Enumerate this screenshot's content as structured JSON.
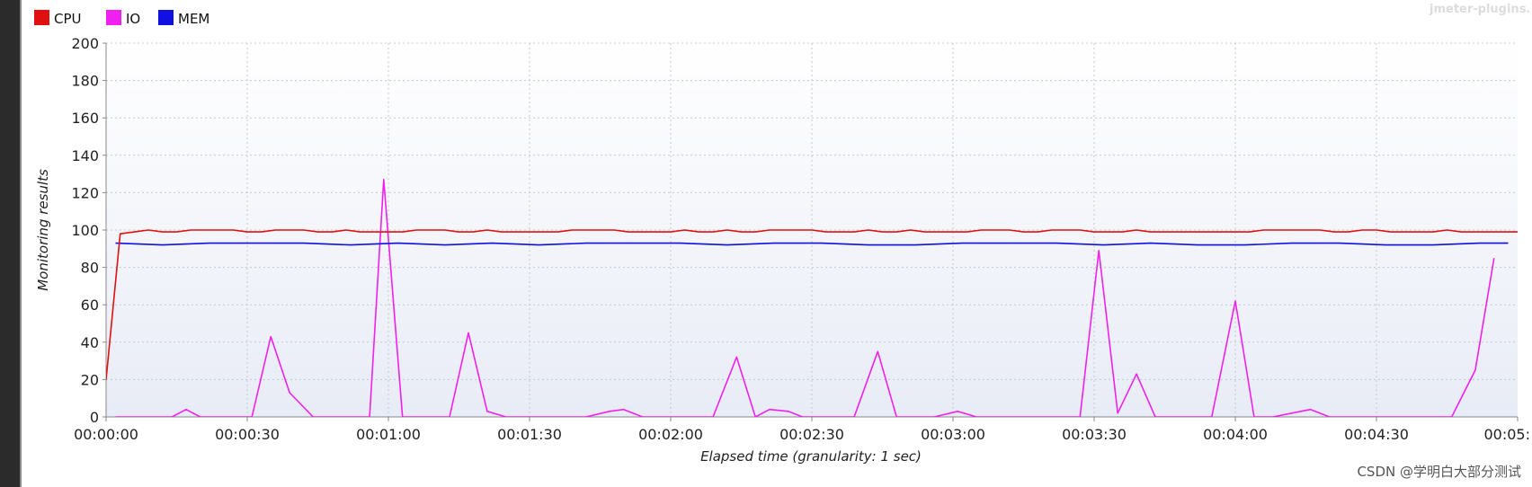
{
  "watermark": "jmeter-plugins.",
  "footer_watermark": "CSDN @学明白大部分测试",
  "colors": {
    "plot_bg_top": "#ffffff",
    "plot_bg_bottom": "#e8ecf6",
    "grid": "#c8c8c8",
    "cpu": "#e01010",
    "io": "#f020f0",
    "mem": "#1010e0"
  },
  "chart_data": {
    "type": "line",
    "title": "",
    "xlabel": "Elapsed time (granularity: 1 sec)",
    "ylabel": "Monitoring results",
    "ylim": [
      0,
      200
    ],
    "xlim": [
      0,
      300
    ],
    "y_ticks": [
      "0",
      "20",
      "40",
      "60",
      "80",
      "100",
      "120",
      "140",
      "160",
      "180",
      "200"
    ],
    "x_ticks": [
      "00:00:00",
      "00:00:30",
      "00:01:00",
      "00:01:30",
      "00:02:00",
      "00:02:30",
      "00:03:00",
      "00:03:30",
      "00:04:00",
      "00:04:30",
      "00:05:"
    ],
    "x_tick_seconds": [
      0,
      30,
      60,
      90,
      120,
      150,
      180,
      210,
      240,
      270,
      300
    ],
    "grid": true,
    "legend_position": "top-left",
    "series": [
      {
        "name": "CPU",
        "color": "#e01010",
        "points": [
          [
            0,
            20
          ],
          [
            3,
            98
          ],
          [
            6,
            99
          ],
          [
            9,
            100
          ],
          [
            12,
            99
          ],
          [
            15,
            99
          ],
          [
            18,
            100
          ],
          [
            21,
            100
          ],
          [
            24,
            100
          ],
          [
            27,
            100
          ],
          [
            30,
            99
          ],
          [
            33,
            99
          ],
          [
            36,
            100
          ],
          [
            39,
            100
          ],
          [
            42,
            100
          ],
          [
            45,
            99
          ],
          [
            48,
            99
          ],
          [
            51,
            100
          ],
          [
            54,
            99
          ],
          [
            57,
            99
          ],
          [
            60,
            99
          ],
          [
            63,
            99
          ],
          [
            66,
            100
          ],
          [
            69,
            100
          ],
          [
            72,
            100
          ],
          [
            75,
            99
          ],
          [
            78,
            99
          ],
          [
            81,
            100
          ],
          [
            84,
            99
          ],
          [
            87,
            99
          ],
          [
            90,
            99
          ],
          [
            93,
            99
          ],
          [
            96,
            99
          ],
          [
            99,
            100
          ],
          [
            102,
            100
          ],
          [
            105,
            100
          ],
          [
            108,
            100
          ],
          [
            111,
            99
          ],
          [
            114,
            99
          ],
          [
            117,
            99
          ],
          [
            120,
            99
          ],
          [
            123,
            100
          ],
          [
            126,
            99
          ],
          [
            129,
            99
          ],
          [
            132,
            100
          ],
          [
            135,
            99
          ],
          [
            138,
            99
          ],
          [
            141,
            100
          ],
          [
            144,
            100
          ],
          [
            147,
            100
          ],
          [
            150,
            100
          ],
          [
            153,
            99
          ],
          [
            156,
            99
          ],
          [
            159,
            99
          ],
          [
            162,
            100
          ],
          [
            165,
            99
          ],
          [
            168,
            99
          ],
          [
            171,
            100
          ],
          [
            174,
            99
          ],
          [
            177,
            99
          ],
          [
            180,
            99
          ],
          [
            183,
            99
          ],
          [
            186,
            100
          ],
          [
            189,
            100
          ],
          [
            192,
            100
          ],
          [
            195,
            99
          ],
          [
            198,
            99
          ],
          [
            201,
            100
          ],
          [
            204,
            100
          ],
          [
            207,
            100
          ],
          [
            210,
            99
          ],
          [
            213,
            99
          ],
          [
            216,
            99
          ],
          [
            219,
            100
          ],
          [
            222,
            99
          ],
          [
            225,
            99
          ],
          [
            228,
            99
          ],
          [
            231,
            99
          ],
          [
            234,
            99
          ],
          [
            237,
            99
          ],
          [
            240,
            99
          ],
          [
            243,
            99
          ],
          [
            246,
            100
          ],
          [
            249,
            100
          ],
          [
            252,
            100
          ],
          [
            255,
            100
          ],
          [
            258,
            100
          ],
          [
            261,
            99
          ],
          [
            264,
            99
          ],
          [
            267,
            100
          ],
          [
            270,
            100
          ],
          [
            273,
            99
          ],
          [
            276,
            99
          ],
          [
            279,
            99
          ],
          [
            282,
            99
          ],
          [
            285,
            100
          ],
          [
            288,
            99
          ],
          [
            291,
            99
          ],
          [
            294,
            99
          ],
          [
            297,
            99
          ],
          [
            300,
            99
          ]
        ]
      },
      {
        "name": "IO",
        "color": "#f020f0",
        "points": [
          [
            2,
            0
          ],
          [
            6,
            0
          ],
          [
            10,
            0
          ],
          [
            14,
            0
          ],
          [
            17,
            4
          ],
          [
            20,
            0
          ],
          [
            24,
            0
          ],
          [
            28,
            0
          ],
          [
            31,
            0
          ],
          [
            35,
            43
          ],
          [
            39,
            13
          ],
          [
            44,
            0
          ],
          [
            48,
            0
          ],
          [
            56,
            0
          ],
          [
            59,
            127
          ],
          [
            63,
            0
          ],
          [
            67,
            0
          ],
          [
            73,
            0
          ],
          [
            77,
            45
          ],
          [
            81,
            3
          ],
          [
            85,
            0
          ],
          [
            89,
            0
          ],
          [
            94,
            0
          ],
          [
            98,
            0
          ],
          [
            102,
            0
          ],
          [
            107,
            3
          ],
          [
            110,
            4
          ],
          [
            114,
            0
          ],
          [
            117,
            0
          ],
          [
            122,
            0
          ],
          [
            129,
            0
          ],
          [
            134,
            32
          ],
          [
            138,
            0
          ],
          [
            141,
            4
          ],
          [
            145,
            3
          ],
          [
            148,
            0
          ],
          [
            152,
            0
          ],
          [
            159,
            0
          ],
          [
            164,
            35
          ],
          [
            168,
            0
          ],
          [
            172,
            0
          ],
          [
            176,
            0
          ],
          [
            181,
            3
          ],
          [
            185,
            0
          ],
          [
            189,
            0
          ],
          [
            194,
            0
          ],
          [
            199,
            0
          ],
          [
            203,
            0
          ],
          [
            207,
            0
          ],
          [
            211,
            89
          ],
          [
            215,
            2
          ],
          [
            219,
            23
          ],
          [
            223,
            0
          ],
          [
            227,
            0
          ],
          [
            231,
            0
          ],
          [
            235,
            0
          ],
          [
            240,
            62
          ],
          [
            244,
            0
          ],
          [
            248,
            0
          ],
          [
            252,
            2
          ],
          [
            256,
            4
          ],
          [
            260,
            0
          ],
          [
            264,
            0
          ],
          [
            269,
            0
          ],
          [
            274,
            0
          ],
          [
            278,
            0
          ],
          [
            282,
            0
          ],
          [
            286,
            0
          ],
          [
            291,
            25
          ],
          [
            295,
            85
          ]
        ]
      },
      {
        "name": "MEM",
        "color": "#1010e0",
        "points": [
          [
            2,
            93
          ],
          [
            12,
            92
          ],
          [
            22,
            93
          ],
          [
            32,
            93
          ],
          [
            42,
            93
          ],
          [
            52,
            92
          ],
          [
            62,
            93
          ],
          [
            72,
            92
          ],
          [
            82,
            93
          ],
          [
            92,
            92
          ],
          [
            102,
            93
          ],
          [
            112,
            93
          ],
          [
            122,
            93
          ],
          [
            132,
            92
          ],
          [
            142,
            93
          ],
          [
            152,
            93
          ],
          [
            162,
            92
          ],
          [
            172,
            92
          ],
          [
            182,
            93
          ],
          [
            192,
            93
          ],
          [
            202,
            93
          ],
          [
            212,
            92
          ],
          [
            222,
            93
          ],
          [
            232,
            92
          ],
          [
            242,
            92
          ],
          [
            252,
            93
          ],
          [
            262,
            93
          ],
          [
            272,
            92
          ],
          [
            282,
            92
          ],
          [
            292,
            93
          ],
          [
            298,
            93
          ]
        ]
      }
    ]
  }
}
